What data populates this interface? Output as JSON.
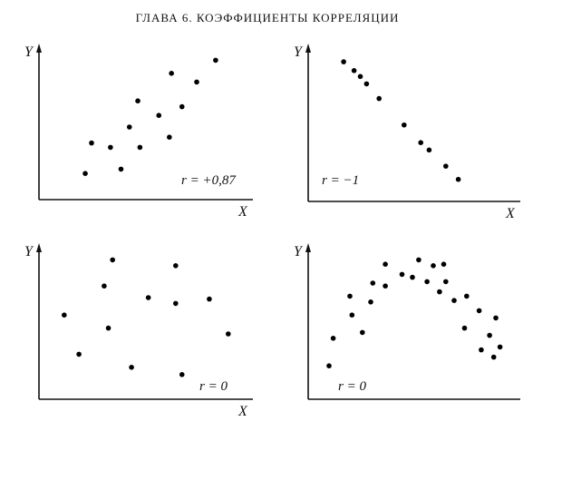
{
  "header": {
    "title": "ГЛАВА 6. КОЭФФИЦИЕНТЫ КОРРЕЛЯЦИИ"
  },
  "chart_data": [
    {
      "type": "scatter",
      "x_label": "X",
      "y_label": "Y",
      "annotation": "r = +0,87",
      "color": "#000000",
      "xlim": [
        0,
        100
      ],
      "ylim": [
        0,
        100
      ],
      "x": [
        22,
        25,
        34,
        39,
        43,
        47,
        48,
        57,
        62,
        63,
        68,
        75,
        84
      ],
      "y": [
        18,
        39,
        36,
        21,
        50,
        68,
        36,
        58,
        43,
        87,
        64,
        81,
        96
      ]
    },
    {
      "type": "scatter",
      "x_label": "X",
      "y_label": "Y",
      "annotation": "r = −1",
      "color": "#000000",
      "xlim": [
        0,
        100
      ],
      "ylim": [
        0,
        100
      ],
      "x": [
        17,
        22,
        25,
        28,
        34,
        46,
        54,
        58,
        66,
        72
      ],
      "y": [
        95,
        89,
        85,
        80,
        70,
        52,
        40,
        35,
        24,
        15
      ]
    },
    {
      "type": "scatter",
      "x_label": "X",
      "y_label": "Y",
      "annotation": "r = 0",
      "color": "#000000",
      "xlim": [
        0,
        100
      ],
      "ylim": [
        0,
        100
      ],
      "x": [
        12,
        19,
        31,
        33,
        35,
        44,
        52,
        65,
        65,
        68,
        81,
        90
      ],
      "y": [
        58,
        31,
        78,
        49,
        96,
        22,
        70,
        92,
        66,
        17,
        69,
        45
      ]
    },
    {
      "type": "scatter",
      "y_label": "Y",
      "annotation": "r = 0",
      "color": "#000000",
      "xlim": [
        0,
        100
      ],
      "ylim": [
        0,
        100
      ],
      "x": [
        10,
        12,
        20,
        21,
        26,
        30,
        31,
        37,
        37,
        45,
        50,
        53,
        57,
        60,
        63,
        65,
        66,
        70,
        75,
        76,
        82,
        83,
        87,
        89,
        90,
        92
      ],
      "y": [
        23,
        42,
        71,
        58,
        46,
        67,
        80,
        78,
        93,
        86,
        84,
        96,
        81,
        92,
        74,
        93,
        81,
        68,
        49,
        71,
        61,
        34,
        44,
        29,
        56,
        36
      ]
    }
  ]
}
